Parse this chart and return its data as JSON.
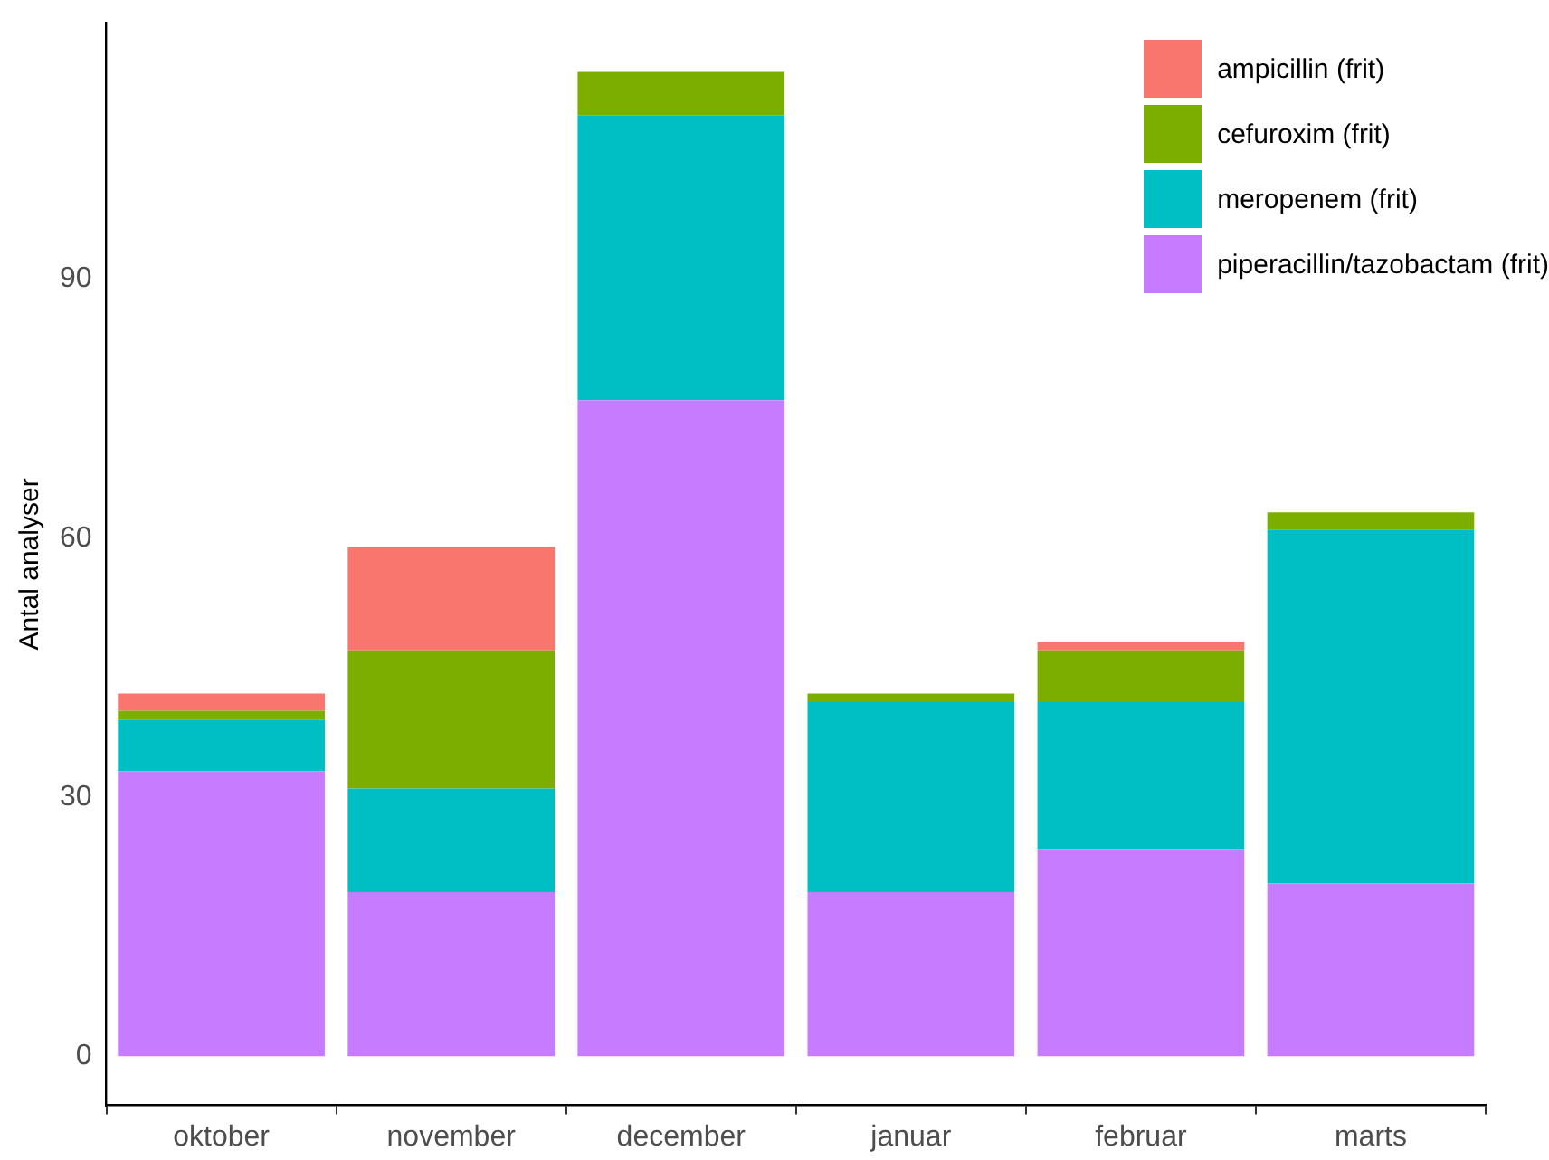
{
  "chart_data": {
    "type": "bar",
    "ylabel": "Antal analyser",
    "categories": [
      "oktober",
      "november",
      "december",
      "januar",
      "februar",
      "marts"
    ],
    "stacked": true,
    "ylim": [
      -5.7,
      119.7
    ],
    "yticks": [
      0,
      30,
      60,
      90
    ],
    "grid": false,
    "legend": "top right",
    "series": [
      {
        "name": "piperacillin/tazobactam (frit)",
        "color": "#c77cff",
        "values": [
          33,
          19,
          76,
          19,
          24,
          20
        ]
      },
      {
        "name": "meropenem (frit)",
        "color": "#00bfc4",
        "values": [
          6,
          12,
          33,
          22,
          17,
          41
        ]
      },
      {
        "name": "cefuroxim (frit)",
        "color": "#7cae00",
        "values": [
          1,
          16,
          5,
          1,
          6,
          2
        ]
      },
      {
        "name": "ampicillin (frit)",
        "color": "#f8766d",
        "values": [
          2,
          12,
          0,
          0,
          1,
          0
        ]
      }
    ]
  }
}
